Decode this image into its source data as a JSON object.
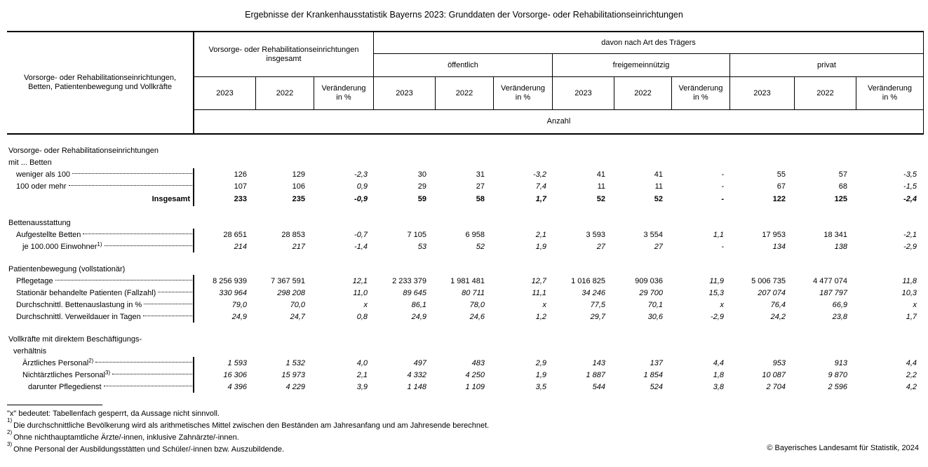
{
  "title": "Ergebnisse der Krankenhausstatistik Bayerns 2023: Grunddaten der Vorsorge- oder Rehabilitationseinrichtungen",
  "colors": {
    "text": "#000000",
    "background": "#ffffff",
    "border": "#000000"
  },
  "table": {
    "header": {
      "stub": [
        "Vorsorge- oder Rehabilitationseinrichtungen,",
        "Betten, Patientenbewegung und Vollkräfte"
      ],
      "total_group": [
        "Vorsorge- oder Rehabilitationseinrichtungen",
        "insgesamt"
      ],
      "davon": "davon nach Art des Trägers",
      "groups": [
        "öffentlich",
        "freigemeinnützig",
        "privat"
      ],
      "year1": "2023",
      "year2": "2022",
      "change": [
        "Veränderung",
        "in %"
      ],
      "unit": "Anzahl"
    },
    "rows": [
      {
        "t": "sec",
        "label": "Vorsorge- oder Rehabilitationseinrichtungen",
        "ind": 0
      },
      {
        "t": "sec",
        "label": "mit ... Betten",
        "ind": 0
      },
      {
        "t": "row",
        "label": "weniger als 100",
        "ind": 1,
        "leader": true,
        "line": true,
        "v": [
          "126",
          "129",
          "-2,3",
          "30",
          "31",
          "-3,2",
          "41",
          "41",
          "-",
          "55",
          "57",
          "-3,5"
        ]
      },
      {
        "t": "row",
        "label": "100 oder mehr",
        "ind": 1,
        "leader": true,
        "line": true,
        "v": [
          "107",
          "106",
          "0,9",
          "29",
          "27",
          "7,4",
          "11",
          "11",
          "-",
          "67",
          "68",
          "-1,5"
        ]
      },
      {
        "t": "total",
        "label": "Insgesamt",
        "bold": true,
        "line": true,
        "v": [
          "233",
          "235",
          "-0,9",
          "59",
          "58",
          "1,7",
          "52",
          "52",
          "-",
          "122",
          "125",
          "-2,4"
        ]
      },
      {
        "t": "gap"
      },
      {
        "t": "sec",
        "label": "Bettenausstattung",
        "ind": 0
      },
      {
        "t": "row",
        "label": "Aufgestellte Betten",
        "ind": 1,
        "leader": true,
        "line": true,
        "v": [
          "28 651",
          "28 853",
          "-0,7",
          "7 105",
          "6 958",
          "2,1",
          "3 593",
          "3 554",
          "1,1",
          "17 953",
          "18 341",
          "-2,1"
        ]
      },
      {
        "t": "row",
        "label": "je 100.000 Einwohner",
        "sup": "1)",
        "ind": 2,
        "leader": true,
        "line": true,
        "ital": true,
        "v": [
          "214",
          "217",
          "-1,4",
          "53",
          "52",
          "1,9",
          "27",
          "27",
          "-",
          "134",
          "138",
          "-2,9"
        ]
      },
      {
        "t": "gap"
      },
      {
        "t": "sec",
        "label": "Patientenbewegung (vollstationär)",
        "ind": 0
      },
      {
        "t": "row",
        "label": "Pflegetage",
        "ind": 1,
        "leader": true,
        "line": true,
        "v": [
          "8 256 939",
          "7 367 591",
          "12,1",
          "2 233 379",
          "1 981 481",
          "12,7",
          "1 016 825",
          "909 036",
          "11,9",
          "5 006 735",
          "4 477 074",
          "11,8"
        ]
      },
      {
        "t": "row",
        "label": "Stationär behandelte Patienten (Fallzahl)",
        "ind": 1,
        "leader": true,
        "line": true,
        "ital": true,
        "v": [
          "330 964",
          "298 208",
          "11,0",
          "89 645",
          "80 711",
          "11,1",
          "34 246",
          "29 700",
          "15,3",
          "207 074",
          "187 797",
          "10,3"
        ]
      },
      {
        "t": "row",
        "label": "Durchschnittl. Bettenauslastung in %",
        "ind": 1,
        "leader": true,
        "line": true,
        "ital": true,
        "v": [
          "79,0",
          "70,0",
          "x",
          "86,1",
          "78,0",
          "x",
          "77,5",
          "70,1",
          "x",
          "76,4",
          "66,9",
          "x"
        ]
      },
      {
        "t": "row",
        "label": "Durchschnittl. Verweildauer in Tagen",
        "ind": 1,
        "leader": true,
        "line": true,
        "ital": true,
        "v": [
          "24,9",
          "24,7",
          "0,8",
          "24,9",
          "24,6",
          "1,2",
          "29,7",
          "30,6",
          "-2,9",
          "24,2",
          "23,8",
          "1,7"
        ]
      },
      {
        "t": "gap"
      },
      {
        "t": "sec",
        "label": "Vollkräfte mit direktem Beschäftigungs-",
        "ind": 0
      },
      {
        "t": "sec",
        "label": "verhältnis",
        "ind": "v"
      },
      {
        "t": "row",
        "label": "Ärztliches Personal",
        "sup": "2)",
        "ind": 2,
        "leader": true,
        "line": true,
        "ital": true,
        "v": [
          "1 593",
          "1 532",
          "4,0",
          "497",
          "483",
          "2,9",
          "143",
          "137",
          "4,4",
          "953",
          "913",
          "4,4"
        ]
      },
      {
        "t": "row",
        "label": "Nichtärztliches Personal",
        "sup": "3)",
        "ind": 2,
        "leader": true,
        "line": true,
        "ital": true,
        "v": [
          "16 306",
          "15 973",
          "2,1",
          "4 332",
          "4 250",
          "1,9",
          "1 887",
          "1 854",
          "1,8",
          "10 087",
          "9 870",
          "2,2"
        ]
      },
      {
        "t": "row",
        "label": "darunter Pflegedienst",
        "ind": 3,
        "leader": true,
        "line": true,
        "ital": true,
        "v": [
          "4 396",
          "4 229",
          "3,9",
          "1 148",
          "1 109",
          "3,5",
          "544",
          "524",
          "3,8",
          "2 704",
          "2 596",
          "4,2"
        ]
      }
    ]
  },
  "footnotes": {
    "legend": "\"x\" bedeutet: Tabellenfach gesperrt, da Aussage nicht sinnvoll.",
    "items": [
      {
        "sup": "1)",
        "text": "Die durchschnittliche Bevölkerung wird als arithmetisches Mittel zwischen den Beständen am Jahresanfang und am Jahresende berechnet."
      },
      {
        "sup": "2)",
        "text": "Ohne nichthauptamtliche Ärzte/-innen, inklusive Zahnärzte/-innen."
      },
      {
        "sup": "3)",
        "text": "Ohne Personal der Ausbildungsstätten und Schüler/-innen bzw. Auszubildende."
      }
    ]
  },
  "copyright": "© Bayerisches Landesamt für Statistik, 2024"
}
